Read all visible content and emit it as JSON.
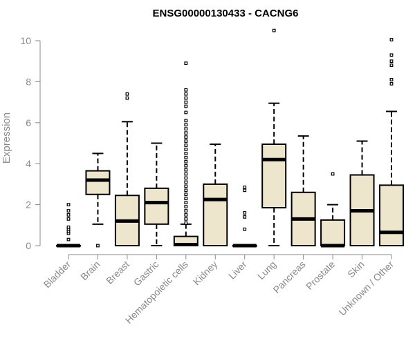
{
  "chart_data": {
    "type": "boxplot",
    "title": "ENSG00000130433 - CACNG6",
    "xlabel": "",
    "ylabel": "Expression",
    "ylim": [
      0,
      10.6
    ],
    "yticks": [
      0,
      2,
      4,
      6,
      8,
      10
    ],
    "box_color": "#EDE6CC",
    "categories": [
      "Bladder",
      "Brain",
      "Breast",
      "Gastric",
      "Hematopoietic cells",
      "Kidney",
      "Liver",
      "Lung",
      "Pancreas",
      "Prostate",
      "Skin",
      "Unknown / Other"
    ],
    "boxes": [
      {
        "label": "Bladder",
        "min": 0,
        "q1": 0,
        "median": 0,
        "q3": 0,
        "max": 0,
        "outliers": [
          0.3,
          0.6,
          0.7,
          0.8,
          0.9,
          1.3,
          1.5,
          1.7,
          2.0
        ]
      },
      {
        "label": "Brain",
        "min": 1.05,
        "q1": 2.5,
        "median": 3.2,
        "q3": 3.65,
        "max": 4.5,
        "outliers": [
          0
        ]
      },
      {
        "label": "Breast",
        "min": 0,
        "q1": 0,
        "median": 1.2,
        "q3": 2.45,
        "max": 6.05,
        "outliers": [
          7.2,
          7.4
        ]
      },
      {
        "label": "Gastric",
        "min": 0,
        "q1": 1.05,
        "median": 2.1,
        "q3": 2.8,
        "max": 5.0,
        "outliers": []
      },
      {
        "label": "Hematopoietic cells",
        "min": 0,
        "q1": 0,
        "median": 0.05,
        "q3": 0.45,
        "max": 1.05,
        "outliers": [
          1.1,
          1.3,
          1.5,
          1.7,
          1.9,
          2.1,
          2.3,
          2.5,
          2.7,
          2.9,
          3.1,
          3.3,
          3.5,
          3.7,
          3.9,
          4.1,
          4.3,
          4.5,
          4.7,
          4.9,
          5.1,
          5.3,
          5.5,
          5.7,
          5.9,
          6.1,
          6.5,
          6.8,
          7.0,
          7.2,
          7.4,
          7.6,
          8.9
        ]
      },
      {
        "label": "Kidney",
        "min": 0,
        "q1": 0,
        "median": 2.25,
        "q3": 3.0,
        "max": 4.95,
        "outliers": []
      },
      {
        "label": "Liver",
        "min": 0,
        "q1": 0,
        "median": 0,
        "q3": 0,
        "max": 0,
        "outliers": [
          0.8,
          1.4,
          1.6,
          2.7,
          2.85
        ]
      },
      {
        "label": "Lung",
        "min": 0,
        "q1": 1.85,
        "median": 4.2,
        "q3": 4.95,
        "max": 6.95,
        "outliers": [
          10.5
        ]
      },
      {
        "label": "Pancreas",
        "min": 0,
        "q1": 0,
        "median": 1.3,
        "q3": 2.6,
        "max": 5.35,
        "outliers": []
      },
      {
        "label": "Prostate",
        "min": 0,
        "q1": 0,
        "median": 0,
        "q3": 1.25,
        "max": 2.0,
        "outliers": [
          3.5
        ]
      },
      {
        "label": "Skin",
        "min": 0,
        "q1": 0,
        "median": 1.7,
        "q3": 3.45,
        "max": 5.1,
        "outliers": []
      },
      {
        "label": "Unknown / Other",
        "min": 0,
        "q1": 0,
        "median": 0.65,
        "q3": 2.95,
        "max": 6.55,
        "outliers": [
          7.9,
          8.1,
          8.8,
          9.0,
          9.3,
          10.05
        ]
      }
    ]
  }
}
